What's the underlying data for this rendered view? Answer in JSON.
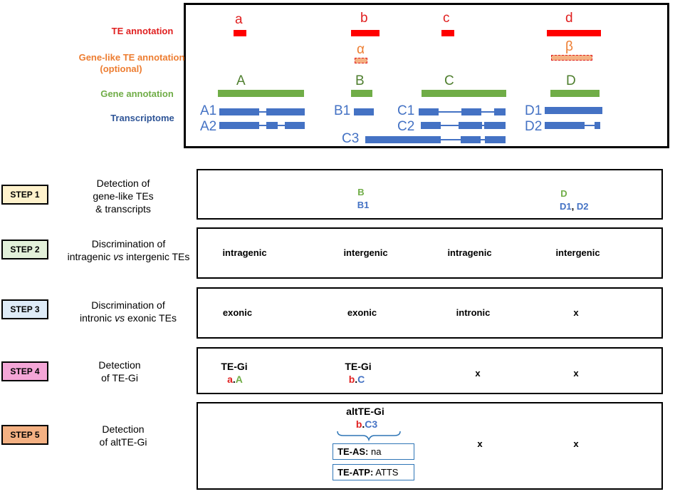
{
  "legend": {
    "te_annotation": "TE annotation",
    "gene_like_te": "Gene-like TE annotation",
    "gene_like_te_optional": "(optional)",
    "gene_annotation": "Gene annotation",
    "transcriptome": "Transcriptome"
  },
  "te_labels": [
    "a",
    "b",
    "c",
    "d"
  ],
  "gene_like_labels": [
    "α",
    "β"
  ],
  "gene_labels": [
    "A",
    "B",
    "C",
    "D"
  ],
  "transcript_labels": [
    "A1",
    "A2",
    "B1",
    "C1",
    "C2",
    "C3",
    "D1",
    "D2"
  ],
  "steps": [
    {
      "badge": "STEP 1",
      "desc": [
        "Detection of",
        "gene-like TEs",
        "& transcripts"
      ],
      "color": "#fff2cc"
    },
    {
      "badge": "STEP 2",
      "desc": [
        "Discrimination of",
        "intragenic vs intergenic TEs"
      ],
      "color": "#e2f0d9"
    },
    {
      "badge": "STEP 3",
      "desc": [
        "Discrimination of",
        "intronic vs exonic TEs"
      ],
      "color": "#deebf7"
    },
    {
      "badge": "STEP 4",
      "desc": [
        "Detection",
        "of TE-Gi"
      ],
      "color": "#f4a6d7"
    },
    {
      "badge": "STEP 5",
      "desc": [
        "Detection",
        "of altTE-Gi"
      ],
      "color": "#f4b183"
    }
  ],
  "step1": {
    "b_gene": "B",
    "b_tx": "B1",
    "d_gene": "D",
    "d_tx1": "D1",
    "d_sep": ", ",
    "d_tx2": "D2"
  },
  "step2": [
    "intragenic",
    "intergenic",
    "intragenic",
    "intergenic"
  ],
  "step3": [
    "exonic",
    "exonic",
    "intronic",
    "x"
  ],
  "step4": {
    "a_title": "TE-Gi",
    "a_te": "a",
    "a_dot": ".",
    "a_gene": "A",
    "b_title": "TE-Gi",
    "b_te": "b",
    "b_dot": ".",
    "b_gene": "C",
    "c": "x",
    "d": "x"
  },
  "step5": {
    "title": "altTE-Gi",
    "te": "b",
    "dot": ".",
    "tx": "C3",
    "as_label": "TE-AS:",
    "as_value": "na",
    "atp_label": "TE-ATP:",
    "atp_value": "ATTS",
    "c": "x",
    "d": "x"
  }
}
